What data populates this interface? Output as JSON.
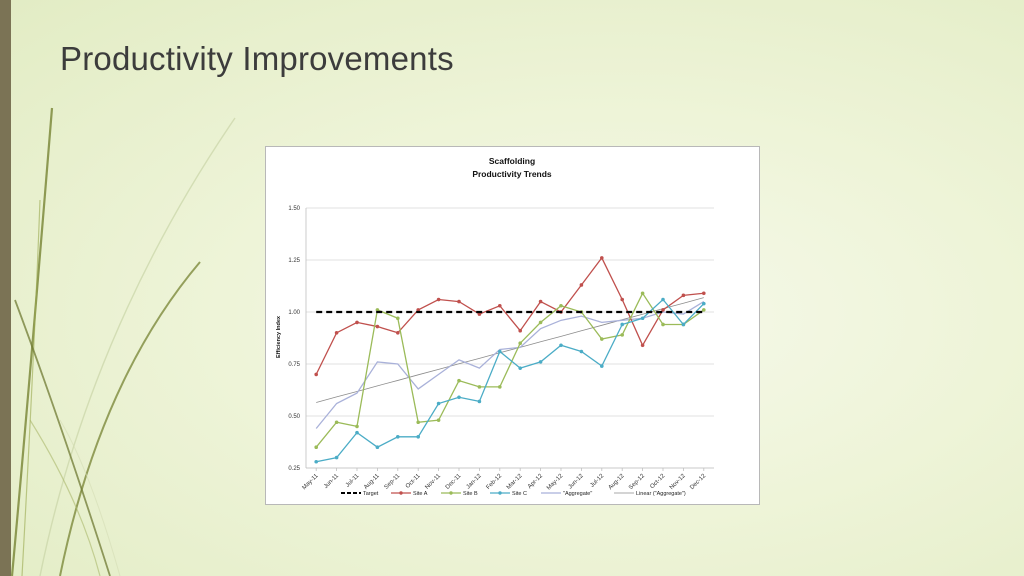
{
  "slide": {
    "title": "Productivity Improvements"
  },
  "colors": {
    "site_a": "#c0504d",
    "site_b": "#9bbb59",
    "site_c": "#4bacc6",
    "aggregate": "#a9b1d9",
    "linear": "#8c8c8c",
    "target": "#000000"
  },
  "chart_data": {
    "type": "line",
    "title": "Scaffolding",
    "subtitle": "Productivity Trends",
    "xlabel": "",
    "ylabel": "Efficiency Index",
    "ylim": [
      0.25,
      1.5
    ],
    "yticks": [
      "1.50",
      "1.25",
      "1.00",
      "0.75",
      "0.50",
      "0.25"
    ],
    "grid": true,
    "legend_position": "bottom",
    "categories": [
      "May-11",
      "Jun-11",
      "Jul-11",
      "Aug-11",
      "Sep-11",
      "Oct-11",
      "Nov-11",
      "Dec-11",
      "Jan-12",
      "Feb-12",
      "Mar-12",
      "Apr-12",
      "May-12",
      "Jun-12",
      "Jul-12",
      "Aug-12",
      "Sep-12",
      "Oct-12",
      "Nov-12",
      "Dec-12"
    ],
    "series": [
      {
        "name": "Target",
        "style": "dashed",
        "values": [
          1.0,
          1.0,
          1.0,
          1.0,
          1.0,
          1.0,
          1.0,
          1.0,
          1.0,
          1.0,
          1.0,
          1.0,
          1.0,
          1.0,
          1.0,
          1.0,
          1.0,
          1.0,
          1.0,
          1.0
        ]
      },
      {
        "name": "Site A",
        "style": "markers",
        "values": [
          0.7,
          0.9,
          0.95,
          0.93,
          0.9,
          1.01,
          1.06,
          1.05,
          0.99,
          1.03,
          0.91,
          1.05,
          1.0,
          1.13,
          1.26,
          1.06,
          0.84,
          1.01,
          1.08,
          1.09
        ]
      },
      {
        "name": "Site B",
        "style": "markers",
        "values": [
          0.35,
          0.47,
          0.45,
          1.01,
          0.97,
          0.47,
          0.48,
          0.67,
          0.64,
          0.64,
          0.85,
          0.95,
          1.03,
          1.0,
          0.87,
          0.89,
          1.09,
          0.94,
          0.94,
          1.01
        ]
      },
      {
        "name": "Site C",
        "style": "markers",
        "values": [
          0.28,
          0.3,
          0.42,
          0.35,
          0.4,
          0.4,
          0.56,
          0.59,
          0.57,
          0.81,
          0.73,
          0.76,
          0.84,
          0.81,
          0.74,
          0.94,
          0.97,
          1.06,
          0.94,
          1.04
        ]
      },
      {
        "name": "\"Aggregate\"",
        "style": "line",
        "values": [
          0.44,
          0.56,
          0.61,
          0.76,
          0.75,
          0.63,
          0.7,
          0.77,
          0.73,
          0.82,
          0.83,
          0.92,
          0.96,
          0.98,
          0.95,
          0.96,
          0.97,
          1.0,
          0.99,
          1.05
        ]
      },
      {
        "name": "Linear (\"Aggregate\")",
        "style": "trend",
        "values": [
          0.565,
          0.592,
          0.618,
          0.645,
          0.671,
          0.698,
          0.724,
          0.751,
          0.777,
          0.804,
          0.83,
          0.857,
          0.883,
          0.91,
          0.936,
          0.963,
          0.989,
          1.016,
          1.042,
          1.069
        ]
      }
    ]
  }
}
